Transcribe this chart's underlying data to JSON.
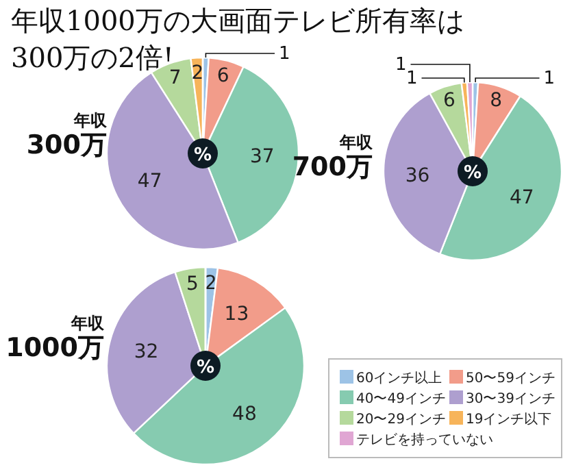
{
  "chart_data": [
    {
      "type": "pie",
      "title": "年収1000万の大画面テレビ所有率は\n300万の2倍!",
      "subtitle": "年収\n300万",
      "annotations": [
        "%"
      ],
      "categories": [
        null,
        null,
        null,
        null,
        null,
        null,
        null
      ],
      "values": [
        1,
        6,
        37,
        47,
        7,
        2,
        0
      ],
      "value_labels": [
        "1",
        "6",
        "37",
        "47",
        "7",
        "2",
        null
      ],
      "colors": [
        "#9dc3e6",
        "#f29c8a",
        "#86cbb0",
        "#ae9fcf",
        "#b5d99c",
        "#f7b45a",
        "#e0a6d3"
      ]
    },
    {
      "type": "pie",
      "subtitle": "年収\n700万",
      "annotations": [
        "%"
      ],
      "categories": [
        null,
        null,
        null,
        null,
        null,
        null,
        null
      ],
      "values": [
        1,
        8,
        47,
        36,
        6,
        1,
        1
      ],
      "value_labels": [
        "1",
        "8",
        "47",
        "36",
        "6",
        "1",
        "1"
      ],
      "colors": [
        "#9dc3e6",
        "#f29c8a",
        "#86cbb0",
        "#ae9fcf",
        "#b5d99c",
        "#f7b45a",
        "#e0a6d3"
      ]
    },
    {
      "type": "pie",
      "subtitle": "年収\n1000万",
      "annotations": [
        "%"
      ],
      "categories": [
        "60インチ以上",
        "50〜59インチ",
        "40〜49インチ",
        "30〜39インチ",
        "20〜29インチ",
        "19インチ以下",
        "テレビを持っていない"
      ],
      "values": [
        2,
        13,
        48,
        32,
        5,
        0,
        0
      ],
      "value_labels": [
        "2",
        "13",
        "48",
        "32",
        "5",
        null,
        null
      ],
      "colors": [
        "#9dc3e6",
        "#f29c8a",
        "#86cbb0",
        "#ae9fcf",
        "#b5d99c",
        "#f7b45a",
        "#e0a6d3"
      ],
      "legend": "bottom right"
    }
  ]
}
